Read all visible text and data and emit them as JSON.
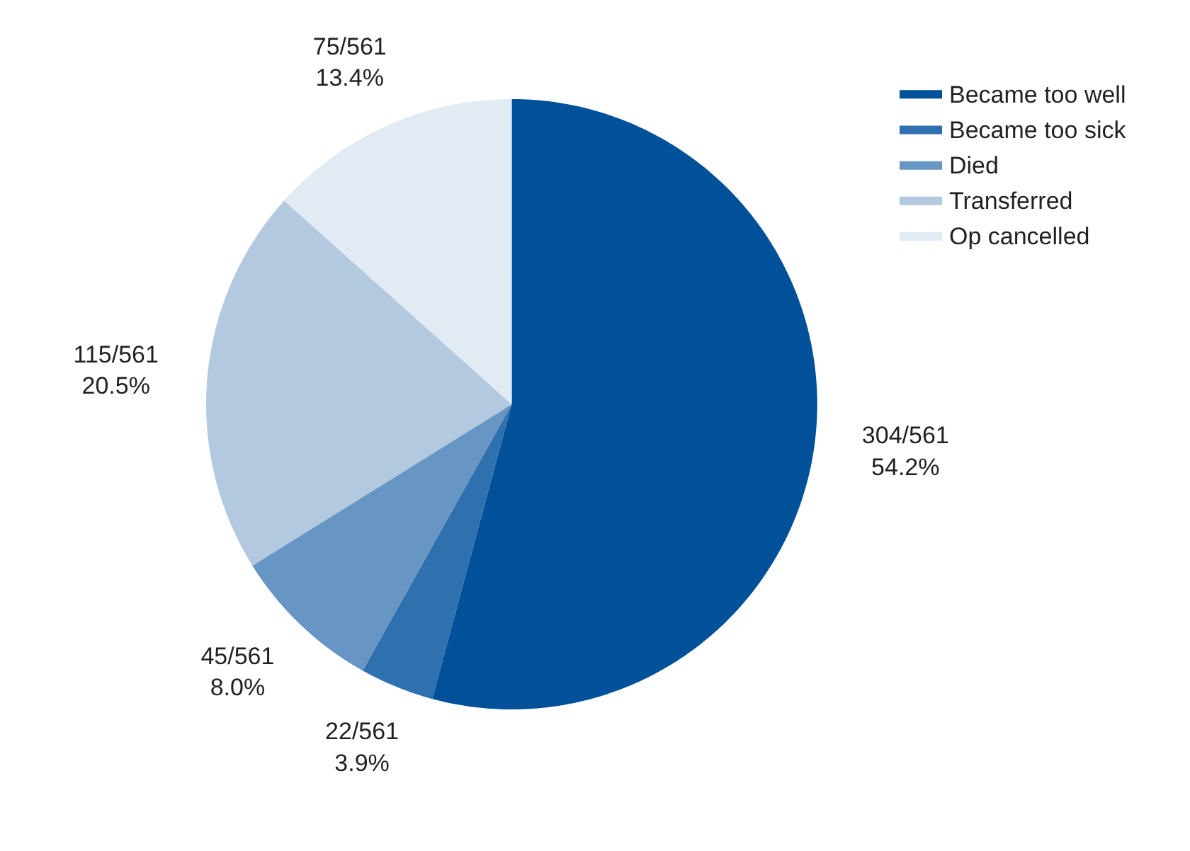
{
  "chart_data": {
    "type": "pie",
    "categories": [
      "Became too well",
      "Became too sick",
      "Died",
      "Transferred",
      "Op cancelled"
    ],
    "values": [
      304,
      22,
      45,
      115,
      75
    ],
    "colors": [
      "#00509a",
      "#2f70ae",
      "#6796c4",
      "#b3c9e0",
      "#e2ebf4"
    ],
    "value_labels": [
      "304/561\n54.2%",
      "22/561\n3.9%",
      "45/561\n8.0%",
      "115/561\n20.5%",
      "75/561\n13.4%"
    ],
    "legend": "top right"
  }
}
